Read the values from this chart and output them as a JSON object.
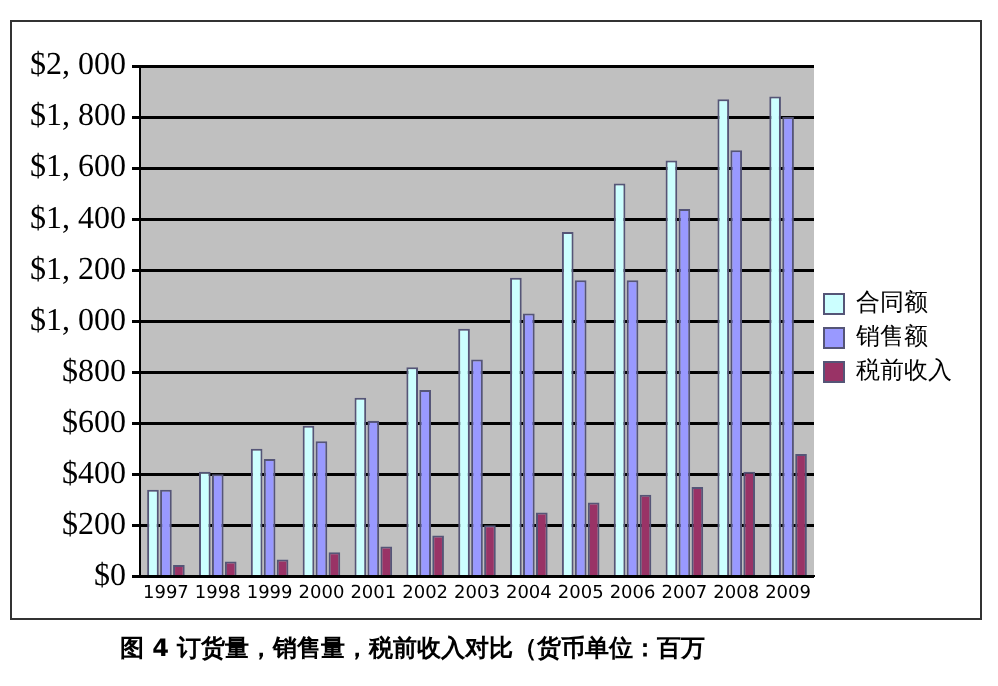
{
  "chart_data": {
    "type": "bar",
    "categories": [
      "1997",
      "1998",
      "1999",
      "2000",
      "2001",
      "2002",
      "2003",
      "2004",
      "2005",
      "2006",
      "2007",
      "2008",
      "2009"
    ],
    "series": [
      {
        "name": "合同额",
        "color": "#ccffff",
        "values": [
          340,
          410,
          500,
          590,
          700,
          820,
          970,
          1170,
          1350,
          1540,
          1630,
          1870,
          1880
        ]
      },
      {
        "name": "销售额",
        "color": "#9999ff",
        "values": [
          340,
          400,
          460,
          530,
          610,
          730,
          850,
          1030,
          1160,
          1160,
          1440,
          1670,
          1800
        ]
      },
      {
        "name": "税前收入",
        "color": "#993366",
        "values": [
          45,
          58,
          66,
          95,
          117,
          160,
          200,
          250,
          290,
          320,
          350,
          410,
          480
        ]
      }
    ],
    "ylim": [
      0,
      2000
    ],
    "yticks": [
      {
        "value": 0,
        "label": "$0"
      },
      {
        "value": 200,
        "label": "$200"
      },
      {
        "value": 400,
        "label": "$400"
      },
      {
        "value": 600,
        "label": "$600"
      },
      {
        "value": 800,
        "label": "$800"
      },
      {
        "value": 1000,
        "label": "$1, 000"
      },
      {
        "value": 1200,
        "label": "$1, 200"
      },
      {
        "value": 1400,
        "label": "$1, 400"
      },
      {
        "value": 1600,
        "label": "$1, 600"
      },
      {
        "value": 1800,
        "label": "$1, 800"
      },
      {
        "value": 2000,
        "label": "$2, 000"
      }
    ],
    "grid": "y",
    "legend": "right",
    "annotations": [
      "图 4 订货量，销售量，税前收入对比（货币单位：百万"
    ]
  }
}
